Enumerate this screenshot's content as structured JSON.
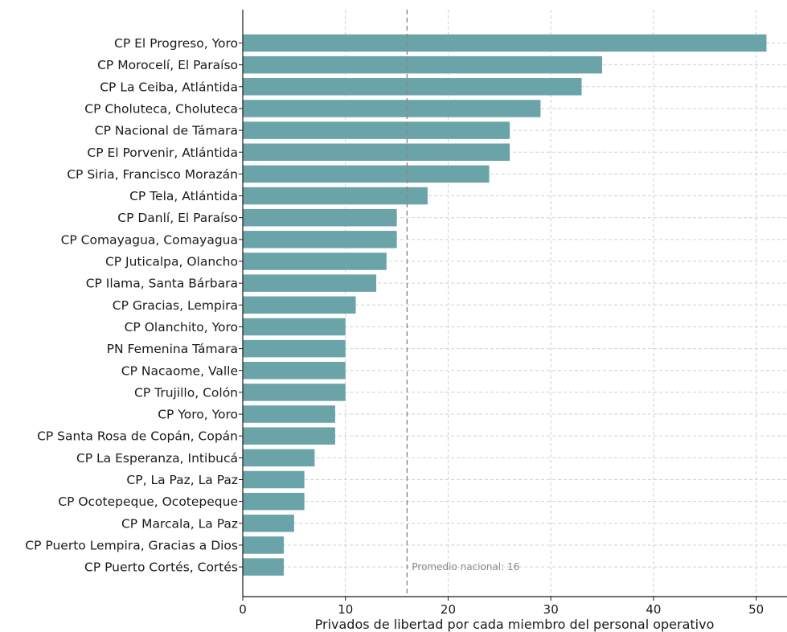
{
  "chart_data": {
    "type": "bar",
    "orientation": "horizontal",
    "categories": [
      "CP El Progreso, Yoro",
      "CP Morocelí, El Paraíso",
      "CP La Ceiba, Atlántida",
      "CP Choluteca, Choluteca",
      "CP Nacional de Támara",
      "CP El Porvenir, Atlántida",
      "CP Siria, Francisco Morazán",
      "CP Tela, Atlántida",
      "CP Danlí, El Paraíso",
      "CP Comayagua, Comayagua",
      "CP Juticalpa, Olancho",
      "CP Ilama, Santa Bárbara",
      "CP Gracias, Lempira",
      "CP Olanchito, Yoro",
      "PN Femenina Támara",
      "CP Nacaome, Valle",
      "CP Trujillo, Colón",
      "CP Yoro, Yoro",
      "CP Santa Rosa de Copán, Copán",
      "CP La Esperanza, Intibucá",
      "CP, La Paz, La Paz",
      "CP Ocotepeque, Ocotepeque",
      "CP Marcala, La Paz",
      "CP Puerto Lempira, Gracias a Dios",
      "CP Puerto Cortés, Cortés"
    ],
    "values": [
      51,
      35,
      33,
      29,
      26,
      26,
      24,
      18,
      15,
      15,
      14,
      13,
      11,
      10,
      10,
      10,
      10,
      9,
      9,
      7,
      6,
      6,
      5,
      4,
      4
    ],
    "xlabel": "Privados de libertad por cada miembro del personal operativo",
    "xlim": [
      0,
      53
    ],
    "xticks": [
      0,
      10,
      20,
      30,
      40,
      50
    ],
    "grid": true,
    "reference_line": {
      "value": 16,
      "label": "Promedio nacional: 16"
    },
    "colors": {
      "bar": "#6aa4a8",
      "grid": "#d0d0d0",
      "reference": "#888888"
    }
  }
}
